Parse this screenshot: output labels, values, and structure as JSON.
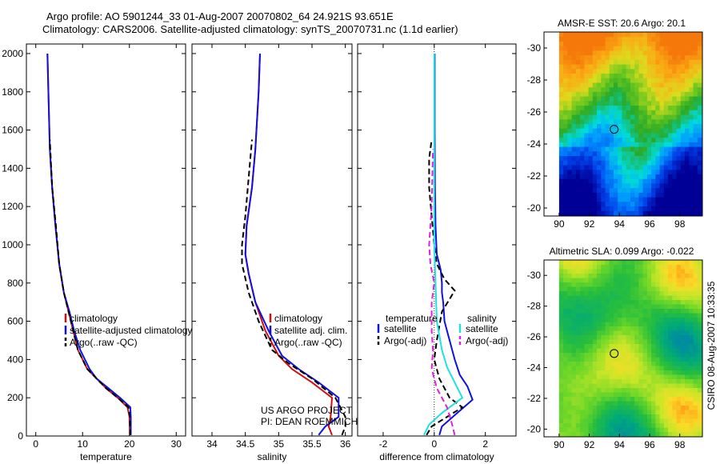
{
  "title_line1": "Argo profile: AO 5901244_33 01-Aug-2007 20070802_64 24.921S 93.651E",
  "title_line2": "Climatology: CARS2006. Satellite-adjusted climatology: synTS_20070731.nc (1.1d earlier)",
  "side_text": "CSIRO 08-Aug-2007 10:33:35",
  "colors": {
    "clim": "#d01010",
    "sat": "#1010e0",
    "argo": "#000000",
    "sal_sat": "#20e0e0",
    "sal_argo": "#e020e0"
  },
  "chart_data": [
    {
      "type": "line",
      "panel": "temperature",
      "xlabel": "temperature",
      "ylabel": "",
      "xlim": [
        -2,
        32
      ],
      "ylim": [
        2050,
        0
      ],
      "xticks": [
        "0",
        "10",
        "20",
        "30"
      ],
      "xtick_values": [
        0,
        10,
        20,
        30
      ],
      "yticks": [
        "0",
        "200",
        "400",
        "600",
        "800",
        "1000",
        "1200",
        "1400",
        "1600",
        "1800",
        "2000"
      ],
      "ytick_values": [
        0,
        200,
        400,
        600,
        800,
        1000,
        1200,
        1400,
        1600,
        1800,
        2000
      ],
      "legend": [
        {
          "name": "climatology",
          "color": "#d01010"
        },
        {
          "name": "satellite-adjusted climatology",
          "color": "#1010e0"
        },
        {
          "name": "Argo(..raw -QC)",
          "color": "#000000"
        }
      ],
      "series": [
        {
          "name": "climatology",
          "color": "#d01010",
          "style": "solid",
          "x": [
            20.1,
            20.0,
            19.6,
            17.5,
            15.0,
            13.0,
            11.0,
            9.0,
            8.0,
            7.0,
            6.0,
            5.0,
            4.2,
            3.5,
            3.0,
            2.7,
            2.5
          ],
          "y": [
            5,
            100,
            150,
            200,
            250,
            300,
            350,
            450,
            550,
            650,
            750,
            900,
            1100,
            1300,
            1500,
            1800,
            2000
          ]
        },
        {
          "name": "satellite-adjusted climatology",
          "color": "#1010e0",
          "style": "solid",
          "x": [
            20.3,
            20.3,
            20.2,
            18.0,
            15.5,
            13.0,
            11.5,
            9.5,
            8.2,
            7.2,
            6.0,
            5.0,
            4.2,
            3.5,
            3.0,
            2.7,
            2.5
          ],
          "y": [
            5,
            100,
            150,
            200,
            250,
            300,
            350,
            450,
            550,
            650,
            750,
            900,
            1100,
            1300,
            1500,
            1800,
            2000
          ]
        },
        {
          "name": "Argo(..raw -QC)",
          "color": "#000000",
          "style": "dashed",
          "x": [
            20.2,
            20.1,
            19.8,
            17.5,
            15.0,
            13.0,
            11.0,
            9.0,
            8.0,
            7.0,
            6.0,
            5.0,
            4.3,
            3.5,
            3.0
          ],
          "y": [
            5,
            100,
            150,
            200,
            250,
            300,
            350,
            450,
            550,
            650,
            750,
            900,
            1100,
            1300,
            1550
          ]
        }
      ]
    },
    {
      "type": "line",
      "panel": "salinity",
      "xlabel": "salinity",
      "xlim": [
        33.7,
        36.1
      ],
      "ylim": [
        2050,
        0
      ],
      "xticks": [
        "34",
        "34.5",
        "35",
        "35.5",
        "36"
      ],
      "xtick_values": [
        34,
        34.5,
        35,
        35.5,
        36
      ],
      "legend": [
        {
          "name": "climatology",
          "color": "#d01010"
        },
        {
          "name": "satellite adj. clim.",
          "color": "#1010e0"
        },
        {
          "name": "Argo(..raw -QC)",
          "color": "#000000"
        }
      ],
      "annotation_lines": [
        "US ARGO PROJECT",
        "PI: DEAN ROEMMICH"
      ],
      "series": [
        {
          "name": "climatology",
          "color": "#d01010",
          "style": "solid",
          "x": [
            35.8,
            35.75,
            35.78,
            35.8,
            35.5,
            35.2,
            35.0,
            34.8,
            34.65,
            34.55,
            34.5,
            34.52,
            34.6,
            34.65,
            34.7,
            34.72
          ],
          "y": [
            5,
            50,
            100,
            200,
            280,
            350,
            420,
            550,
            700,
            850,
            950,
            1100,
            1300,
            1500,
            1800,
            2000
          ]
        },
        {
          "name": "satellite adj. clim.",
          "color": "#1010e0",
          "style": "solid",
          "x": [
            35.6,
            35.7,
            35.9,
            35.9,
            35.6,
            35.3,
            35.05,
            34.85,
            34.65,
            34.55,
            34.5,
            34.52,
            34.6,
            34.65,
            34.7,
            34.72
          ],
          "y": [
            5,
            50,
            100,
            200,
            280,
            350,
            420,
            550,
            700,
            850,
            950,
            1100,
            1300,
            1500,
            1800,
            2000
          ]
        },
        {
          "name": "Argo(..raw -QC)",
          "color": "#000000",
          "style": "dashed",
          "x": [
            35.95,
            36.0,
            36.0,
            35.85,
            35.5,
            35.15,
            34.9,
            34.7,
            34.55,
            34.45,
            34.45,
            34.5,
            34.55,
            34.6
          ],
          "y": [
            5,
            50,
            100,
            200,
            300,
            380,
            450,
            600,
            750,
            900,
            1000,
            1150,
            1350,
            1550
          ]
        }
      ]
    },
    {
      "type": "line",
      "panel": "difference",
      "xlabel": "difference from climatology",
      "xlim": [
        -3,
        3.2
      ],
      "ylim": [
        2050,
        0
      ],
      "xticks": [
        "-2",
        "0",
        "2"
      ],
      "xtick_values": [
        -2,
        0,
        2
      ],
      "legend_headers": [
        "temperature",
        "salinity"
      ],
      "legend": [
        {
          "name": "satellite",
          "group": "temperature",
          "color": "#1010e0"
        },
        {
          "name": "Argo(-adj)",
          "group": "temperature",
          "color": "#000000"
        },
        {
          "name": "satellite",
          "group": "salinity",
          "color": "#20e0e0"
        },
        {
          "name": "Argo(-adj)",
          "group": "salinity",
          "color": "#e020e0"
        }
      ],
      "series": [
        {
          "name": "temperature satellite",
          "color": "#1010e0",
          "style": "solid",
          "x": [
            0.2,
            0.3,
            0.9,
            1.5,
            1.3,
            1.0,
            0.8,
            0.6,
            0.4,
            0.35,
            0.3,
            0.3,
            0.25,
            0.1,
            0.05,
            0.03,
            0.02,
            0.02
          ],
          "y": [
            5,
            50,
            120,
            190,
            260,
            320,
            400,
            500,
            600,
            700,
            750,
            800,
            870,
            950,
            1100,
            1300,
            1600,
            2000
          ]
        },
        {
          "name": "temperature Argo(-adj)",
          "color": "#000000",
          "style": "dashed",
          "x": [
            -0.3,
            -0.1,
            0.5,
            1.1,
            0.6,
            0.2,
            0.0,
            0.1,
            0.3,
            0.8,
            0.4,
            0.1,
            0.0,
            -0.1,
            -0.2,
            -0.2,
            -0.1
          ],
          "y": [
            5,
            50,
            100,
            150,
            200,
            300,
            400,
            500,
            650,
            760,
            820,
            900,
            1000,
            1150,
            1300,
            1450,
            1550
          ]
        },
        {
          "name": "salinity satellite",
          "color": "#20e0e0",
          "style": "solid",
          "x": [
            -0.4,
            -0.2,
            0.3,
            1.1,
            0.8,
            0.5,
            0.3,
            0.1,
            0.05,
            0.0,
            0.0,
            0.0,
            0.0,
            0.0
          ],
          "y": [
            5,
            60,
            120,
            200,
            280,
            360,
            450,
            600,
            800,
            1000,
            1200,
            1500,
            1800,
            2000
          ]
        },
        {
          "name": "salinity Argo(-adj)",
          "color": "#e020e0",
          "style": "dashed",
          "x": [
            0.8,
            0.7,
            0.5,
            0.1,
            -0.1,
            -0.05,
            -0.1,
            -0.1,
            0.0,
            -0.15,
            -0.2,
            -0.1,
            -0.05
          ],
          "y": [
            5,
            60,
            150,
            250,
            350,
            450,
            550,
            700,
            800,
            900,
            1000,
            1200,
            1500
          ]
        }
      ]
    },
    {
      "type": "heatmap",
      "panel": "sst_map",
      "title": "AMSR-E SST: 20.6 Argo: 20.1",
      "xlim": [
        89,
        99.5
      ],
      "ylim": [
        -31,
        -19.5
      ],
      "xticks": [
        "90",
        "92",
        "94",
        "96",
        "98"
      ],
      "xtick_values": [
        90,
        92,
        94,
        96,
        98
      ],
      "yticks": [
        "-20",
        "-22",
        "-24",
        "-26",
        "-28",
        "-30"
      ],
      "ytick_values": [
        -20,
        -22,
        -24,
        -26,
        -28,
        -30
      ],
      "data_extent_lon": [
        90,
        99.5
      ],
      "marker": {
        "lon": 93.651,
        "lat": -24.921
      }
    },
    {
      "type": "heatmap",
      "panel": "sla_map",
      "title": "Altimetric SLA: 0.099 Argo: -0.022",
      "xlim": [
        89,
        99.5
      ],
      "ylim": [
        -31,
        -19.5
      ],
      "xticks": [
        "90",
        "92",
        "94",
        "96",
        "98"
      ],
      "xtick_values": [
        90,
        92,
        94,
        96,
        98
      ],
      "yticks": [
        "-20",
        "-22",
        "-24",
        "-26",
        "-28",
        "-30"
      ],
      "ytick_values": [
        -20,
        -22,
        -24,
        -26,
        -28,
        -30
      ],
      "data_extent_lon": [
        90,
        99.5
      ],
      "marker": {
        "lon": 93.651,
        "lat": -24.921
      }
    }
  ]
}
